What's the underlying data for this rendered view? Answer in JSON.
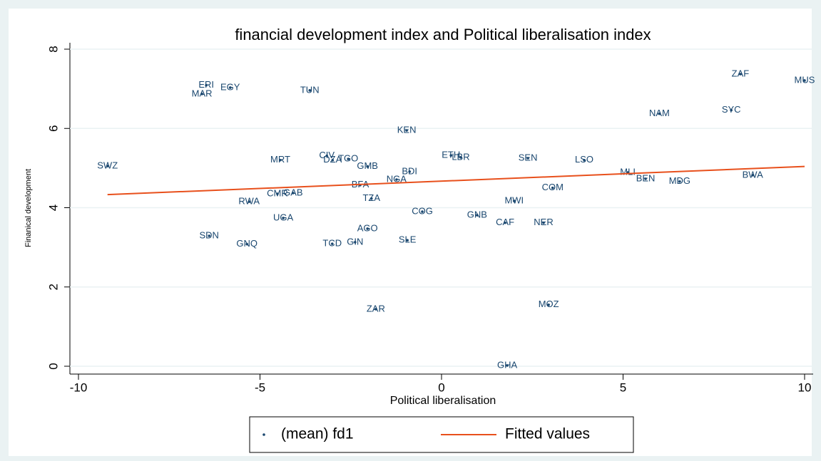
{
  "chart_data": {
    "type": "scatter",
    "title": "financial development index and Political liberalisation index",
    "x_label": "Political liberalisation",
    "y_label": "Finanical development",
    "xlim": [
      -10,
      10
    ],
    "xticks": [
      -10,
      -5,
      0,
      5,
      10
    ],
    "ylim": [
      0,
      8
    ],
    "yticks": [
      0,
      2,
      4,
      6,
      8
    ],
    "grid": true,
    "series": [
      {
        "name": "(mean) fd1",
        "type": "scatter",
        "color": "#1a476f",
        "labels": [
          "SWZ",
          "ERI",
          "EGY",
          "MAR",
          "TUN",
          "KEN",
          "MRT",
          "CIV",
          "DZA",
          "TGO",
          "GMB",
          "BDI",
          "NGA",
          "BFA",
          "ETH",
          "LBR",
          "SEN",
          "LSO",
          "MLI",
          "BEN",
          "MDG",
          "BWA",
          "COM",
          "MWI",
          "CMR",
          "GAB",
          "RWA",
          "TZA",
          "COG",
          "GNB",
          "CAF",
          "NER",
          "UGA",
          "AGO",
          "SLE",
          "SDN",
          "GNQ",
          "TCD",
          "GIN",
          "ZAR",
          "MOZ",
          "GHA",
          "NAM",
          "SYC",
          "ZAF",
          "MUS"
        ],
        "x": [
          -9.2,
          -6.48,
          -5.82,
          -6.6,
          -3.63,
          -0.96,
          -4.44,
          -3.16,
          -3.0,
          -2.57,
          -2.04,
          -0.88,
          -1.24,
          -2.24,
          0.26,
          0.53,
          2.38,
          3.93,
          5.13,
          5.62,
          6.56,
          8.57,
          3.06,
          2.0,
          -4.52,
          -4.09,
          -5.3,
          -1.93,
          -0.53,
          0.98,
          1.75,
          2.81,
          -4.36,
          -2.04,
          -0.94,
          -6.4,
          -5.36,
          -3.01,
          -2.38,
          -1.81,
          2.95,
          1.81,
          6.0,
          7.98,
          8.23,
          10.0
        ],
        "values": [
          5.05,
          7.09,
          7.03,
          6.87,
          6.96,
          5.95,
          5.2,
          5.31,
          5.2,
          5.23,
          5.04,
          4.91,
          4.71,
          4.57,
          5.32,
          5.27,
          5.25,
          5.2,
          4.89,
          4.73,
          4.66,
          4.82,
          4.5,
          4.17,
          4.35,
          4.37,
          4.15,
          4.23,
          3.9,
          3.81,
          3.62,
          3.62,
          3.74,
          3.47,
          3.18,
          3.29,
          3.08,
          3.09,
          3.13,
          1.44,
          1.55,
          0.02,
          6.37,
          6.46,
          7.37,
          7.21
        ]
      },
      {
        "name": "Fitted values",
        "type": "line",
        "color": "#e8501c",
        "x": [
          -9.2,
          10
        ],
        "values": [
          4.33,
          5.04
        ]
      }
    ]
  }
}
